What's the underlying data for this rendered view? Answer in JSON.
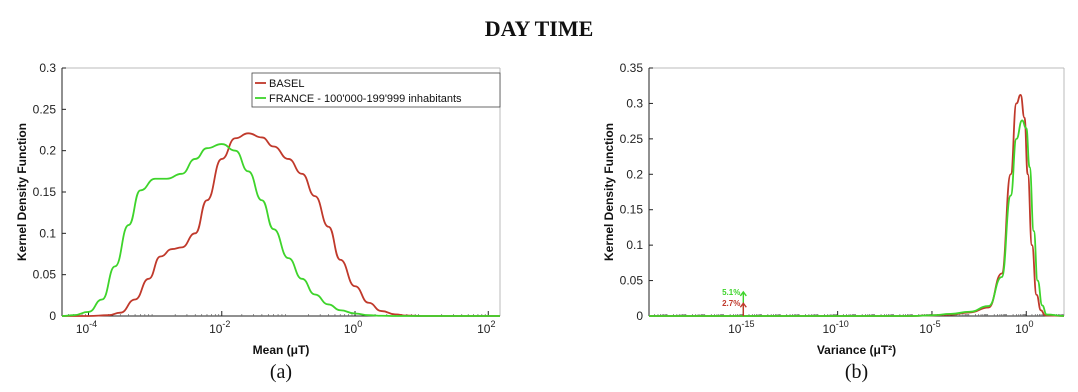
{
  "figure_title": "DAY TIME",
  "colors": {
    "basel": "#c0392b",
    "france": "#3ed42b",
    "axis": "#222222"
  },
  "chart_data": [
    {
      "type": "line",
      "panel_label": "(a)",
      "title": "",
      "xlabel": "Mean (μT)",
      "ylabel": "Kernel Density Function",
      "xscale": "log",
      "xlim": [
        4e-05,
        150
      ],
      "ylim": [
        0,
        0.3
      ],
      "x_ticks": [
        {
          "value": 0.0001,
          "label": "10"
        },
        {
          "value": 0.01,
          "label": "10"
        },
        {
          "value": 1,
          "label": "10"
        },
        {
          "value": 100,
          "label": "10"
        }
      ],
      "x_tick_exponents": [
        "-4",
        "-2",
        "0",
        "2"
      ],
      "y_ticks": [
        "0",
        "0.05",
        "0.1",
        "0.15",
        "0.2",
        "0.25",
        "0.3"
      ],
      "legend": {
        "placement": "top-right",
        "entries": [
          "BASEL",
          "FRANCE - 100'000-199'999 inhabitants"
        ]
      },
      "series": [
        {
          "name": "BASEL",
          "x": [
            4e-05,
            0.0001,
            0.0002,
            0.0003,
            0.0005,
            0.0008,
            0.0012,
            0.0018,
            0.0025,
            0.004,
            0.006,
            0.01,
            0.016,
            0.025,
            0.04,
            0.06,
            0.1,
            0.16,
            0.25,
            0.4,
            0.6,
            1,
            1.6,
            2.5,
            4,
            6,
            10,
            100,
            150
          ],
          "y": [
            0,
            0,
            0.001,
            0.004,
            0.02,
            0.045,
            0.072,
            0.081,
            0.083,
            0.1,
            0.14,
            0.19,
            0.215,
            0.221,
            0.216,
            0.205,
            0.19,
            0.172,
            0.145,
            0.108,
            0.068,
            0.036,
            0.016,
            0.006,
            0.002,
            0.0005,
            0,
            0,
            0
          ]
        },
        {
          "name": "FRANCE - 100'000-199'999 inhabitants",
          "x": [
            4e-05,
            6e-05,
            0.0001,
            0.00016,
            0.00025,
            0.0004,
            0.0006,
            0.001,
            0.0015,
            0.0025,
            0.004,
            0.006,
            0.01,
            0.016,
            0.025,
            0.04,
            0.06,
            0.1,
            0.16,
            0.25,
            0.4,
            0.6,
            1,
            1.6,
            2.5,
            4,
            10,
            100,
            150
          ],
          "y": [
            0,
            0.001,
            0.005,
            0.02,
            0.06,
            0.11,
            0.152,
            0.166,
            0.166,
            0.172,
            0.19,
            0.203,
            0.208,
            0.2,
            0.175,
            0.14,
            0.105,
            0.07,
            0.045,
            0.026,
            0.014,
            0.007,
            0.003,
            0.001,
            0.0003,
            0,
            0,
            0,
            0
          ]
        }
      ]
    },
    {
      "type": "line",
      "panel_label": "(b)",
      "title": "",
      "xlabel": "Variance (μT²)",
      "ylabel": "Kernel Density Function",
      "xscale": "log",
      "xlim": [
        1e-20,
        100
      ],
      "ylim": [
        0,
        0.35
      ],
      "x_ticks": [
        {
          "value": 1e-15,
          "label": "10"
        },
        {
          "value": 1e-10,
          "label": "10"
        },
        {
          "value": 1e-05,
          "label": "10"
        },
        {
          "value": 1,
          "label": "10"
        }
      ],
      "x_tick_exponents": [
        "-15",
        "-10",
        "-5",
        "0"
      ],
      "y_ticks": [
        "0",
        "0.05",
        "0.1",
        "0.15",
        "0.2",
        "0.25",
        "0.3",
        "0.35"
      ],
      "annotations": [
        {
          "text": "5.1%",
          "series": "FRANCE - 100'000-199'999 inhabitants",
          "x": 1e-15,
          "y": 0.034
        },
        {
          "text": "2.7%",
          "series": "BASEL",
          "x": 1e-15,
          "y": 0.018
        }
      ],
      "series": [
        {
          "name": "BASEL",
          "x": [
            1e-20,
            1e-06,
            1e-05,
            0.0001,
            0.001,
            0.01,
            0.05,
            0.15,
            0.3,
            0.5,
            0.8,
            1.2,
            2,
            3.5,
            6,
            10,
            100
          ],
          "y": [
            0,
            0,
            0.001,
            0.002,
            0.005,
            0.012,
            0.06,
            0.2,
            0.3,
            0.312,
            0.28,
            0.2,
            0.1,
            0.03,
            0.008,
            0.001,
            0
          ]
        },
        {
          "name": "FRANCE - 100'000-199'999 inhabitants",
          "x": [
            1e-20,
            1e-06,
            1e-05,
            0.0001,
            0.001,
            0.01,
            0.05,
            0.15,
            0.3,
            0.6,
            1,
            1.5,
            2.5,
            4,
            7,
            12,
            100
          ],
          "y": [
            0,
            0,
            0.001,
            0.003,
            0.006,
            0.014,
            0.055,
            0.17,
            0.25,
            0.276,
            0.265,
            0.21,
            0.12,
            0.05,
            0.015,
            0.002,
            0
          ]
        }
      ]
    }
  ]
}
